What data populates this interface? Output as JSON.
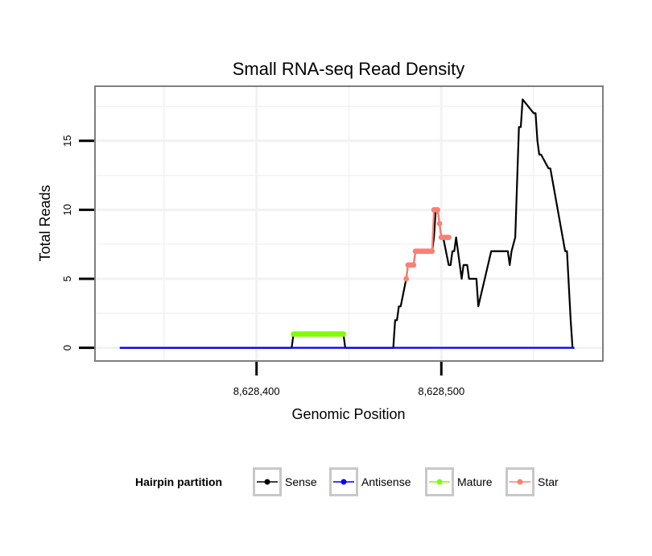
{
  "chart_data": {
    "type": "line",
    "title": "Small RNA-seq Read Density",
    "xlabel": "Genomic Position",
    "ylabel": "Total Reads",
    "xlim": [
      8628313,
      8628587
    ],
    "ylim": [
      -0.9,
      18.9
    ],
    "x_ticks": [
      {
        "value": 8628400,
        "label": "8,628,400"
      },
      {
        "value": 8628500,
        "label": "8,628,500"
      }
    ],
    "y_ticks": [
      {
        "value": 0,
        "label": "0"
      },
      {
        "value": 5,
        "label": "5"
      },
      {
        "value": 10,
        "label": "10"
      },
      {
        "value": 15,
        "label": "15"
      }
    ],
    "grid": true,
    "legend": {
      "title": "Hairpin partition",
      "position": "bottom",
      "entries": [
        {
          "label": "Sense",
          "color": "#000000"
        },
        {
          "label": "Antisense",
          "color": "#0000FF"
        },
        {
          "label": "Mature",
          "color": "#7FFF00"
        },
        {
          "label": "Star",
          "color": "#FA8072"
        }
      ]
    },
    "series": [
      {
        "name": "Sense",
        "color": "#000000",
        "x": [
          8628326,
          8628419,
          8628420,
          8628447,
          8628448,
          8628474,
          8628475,
          8628476,
          8628477,
          8628478,
          8628481,
          8628482,
          8628483,
          8628485,
          8628486,
          8628490,
          8628491,
          8628495,
          8628496,
          8628497,
          8628498,
          8628499,
          8628500,
          8628501,
          8628504,
          8628505,
          8628506,
          8628507,
          8628508,
          8628509,
          8628510,
          8628511,
          8628512,
          8628514,
          8628515,
          8628519,
          8628520,
          8628527,
          8628528,
          8628529,
          8628536,
          8628537,
          8628538,
          8628540,
          8628541,
          8628542,
          8628543,
          8628544,
          8628550,
          8628551,
          8628552,
          8628553,
          8628554,
          8628558,
          8628559,
          8628567,
          8628568,
          8628570,
          8628571,
          8628572
        ],
        "values": [
          0,
          0,
          1,
          1,
          0,
          0,
          2,
          2,
          3,
          3,
          5,
          6,
          6,
          6,
          7,
          7,
          7,
          7,
          8,
          10,
          10,
          9,
          8,
          8,
          6,
          6,
          7,
          7,
          8,
          7,
          6,
          5,
          6,
          6,
          5,
          5,
          3,
          7,
          7,
          7,
          7,
          6,
          7,
          8,
          12,
          16,
          16,
          18,
          17,
          17,
          15,
          14,
          14,
          13,
          13,
          7,
          7,
          2,
          0,
          0
        ]
      },
      {
        "name": "Antisense",
        "color": "#0000FF",
        "x": [
          8628326,
          8628572
        ],
        "values": [
          0,
          0
        ]
      },
      {
        "name": "Mature",
        "color": "#7FFF00",
        "x": [
          8628420,
          8628421,
          8628422,
          8628423,
          8628424,
          8628425,
          8628426,
          8628427,
          8628428,
          8628429,
          8628430,
          8628431,
          8628432,
          8628433,
          8628434,
          8628435,
          8628436,
          8628437,
          8628438,
          8628439,
          8628440,
          8628441,
          8628442,
          8628443,
          8628444,
          8628445,
          8628446,
          8628447
        ],
        "values": [
          1,
          1,
          1,
          1,
          1,
          1,
          1,
          1,
          1,
          1,
          1,
          1,
          1,
          1,
          1,
          1,
          1,
          1,
          1,
          1,
          1,
          1,
          1,
          1,
          1,
          1,
          1,
          1
        ]
      },
      {
        "name": "Star",
        "color": "#FA8072",
        "x": [
          8628481,
          8628482,
          8628483,
          8628484,
          8628485,
          8628486,
          8628487,
          8628488,
          8628489,
          8628490,
          8628491,
          8628492,
          8628493,
          8628494,
          8628495,
          8628496,
          8628497,
          8628498,
          8628499,
          8628500,
          8628501,
          8628502,
          8628503,
          8628504
        ],
        "values": [
          5,
          6,
          6,
          6,
          6,
          7,
          7,
          7,
          7,
          7,
          7,
          7,
          7,
          7,
          7,
          10,
          10,
          10,
          9,
          8,
          8,
          8,
          8,
          8
        ]
      }
    ]
  }
}
